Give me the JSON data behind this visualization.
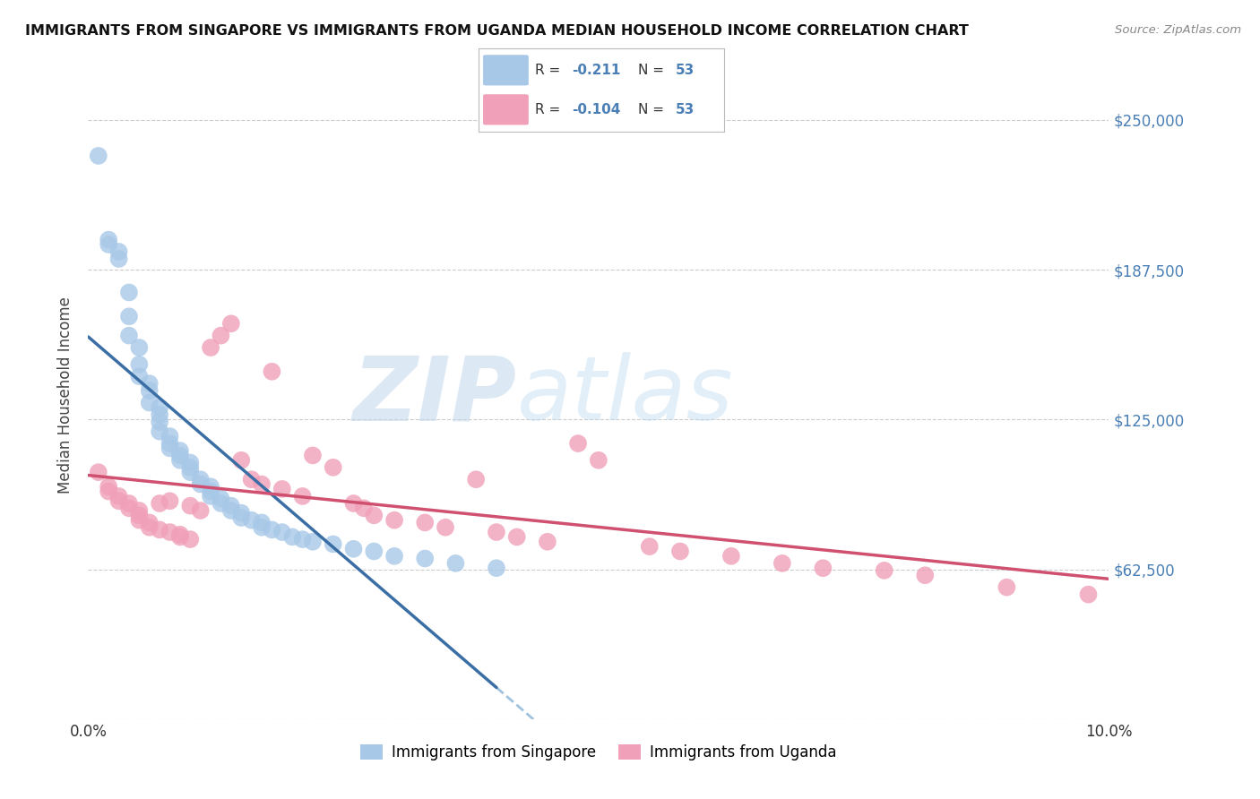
{
  "title": "IMMIGRANTS FROM SINGAPORE VS IMMIGRANTS FROM UGANDA MEDIAN HOUSEHOLD INCOME CORRELATION CHART",
  "source": "Source: ZipAtlas.com",
  "ylabel": "Median Household Income",
  "xlim": [
    0.0,
    0.1
  ],
  "ylim": [
    0,
    270000
  ],
  "yticks": [
    0,
    62500,
    125000,
    187500,
    250000
  ],
  "ytick_labels": [
    "",
    "$62,500",
    "$125,000",
    "$187,500",
    "$250,000"
  ],
  "xticks": [
    0.0,
    0.02,
    0.04,
    0.06,
    0.08,
    0.1
  ],
  "xtick_labels": [
    "0.0%",
    "",
    "",
    "",
    "",
    "10.0%"
  ],
  "singapore_color": "#a8c8e8",
  "uganda_color": "#f0a0b8",
  "singapore_line_color": "#3a6ea5",
  "uganda_line_color": "#d05070",
  "dashed_line_color": "#90b8d8",
  "background_color": "#ffffff",
  "watermark_color": "#d8eaf8",
  "singapore_x": [
    0.001,
    0.002,
    0.002,
    0.003,
    0.003,
    0.004,
    0.004,
    0.004,
    0.005,
    0.005,
    0.005,
    0.006,
    0.006,
    0.006,
    0.007,
    0.007,
    0.007,
    0.007,
    0.008,
    0.008,
    0.008,
    0.009,
    0.009,
    0.009,
    0.01,
    0.01,
    0.01,
    0.011,
    0.011,
    0.012,
    0.012,
    0.012,
    0.013,
    0.013,
    0.014,
    0.014,
    0.015,
    0.015,
    0.016,
    0.017,
    0.017,
    0.018,
    0.019,
    0.02,
    0.021,
    0.022,
    0.024,
    0.026,
    0.028,
    0.03,
    0.033,
    0.036,
    0.04
  ],
  "singapore_y": [
    235000,
    200000,
    198000,
    195000,
    192000,
    178000,
    168000,
    160000,
    155000,
    148000,
    143000,
    140000,
    137000,
    132000,
    130000,
    127000,
    124000,
    120000,
    118000,
    115000,
    113000,
    112000,
    110000,
    108000,
    107000,
    105000,
    103000,
    100000,
    98000,
    97000,
    95000,
    93000,
    92000,
    90000,
    89000,
    87000,
    86000,
    84000,
    83000,
    82000,
    80000,
    79000,
    78000,
    76000,
    75000,
    74000,
    73000,
    71000,
    70000,
    68000,
    67000,
    65000,
    63000
  ],
  "uganda_x": [
    0.001,
    0.002,
    0.002,
    0.003,
    0.003,
    0.004,
    0.004,
    0.005,
    0.005,
    0.005,
    0.006,
    0.006,
    0.007,
    0.007,
    0.008,
    0.008,
    0.009,
    0.009,
    0.01,
    0.01,
    0.011,
    0.012,
    0.013,
    0.014,
    0.015,
    0.016,
    0.017,
    0.018,
    0.019,
    0.021,
    0.022,
    0.024,
    0.026,
    0.027,
    0.028,
    0.03,
    0.033,
    0.035,
    0.038,
    0.04,
    0.042,
    0.045,
    0.048,
    0.05,
    0.055,
    0.058,
    0.063,
    0.068,
    0.072,
    0.078,
    0.082,
    0.09,
    0.098
  ],
  "uganda_y": [
    103000,
    97000,
    95000,
    93000,
    91000,
    90000,
    88000,
    87000,
    85000,
    83000,
    82000,
    80000,
    90000,
    79000,
    91000,
    78000,
    77000,
    76000,
    89000,
    75000,
    87000,
    155000,
    160000,
    165000,
    108000,
    100000,
    98000,
    145000,
    96000,
    93000,
    110000,
    105000,
    90000,
    88000,
    85000,
    83000,
    82000,
    80000,
    100000,
    78000,
    76000,
    74000,
    115000,
    108000,
    72000,
    70000,
    68000,
    65000,
    63000,
    62000,
    60000,
    55000,
    52000
  ]
}
